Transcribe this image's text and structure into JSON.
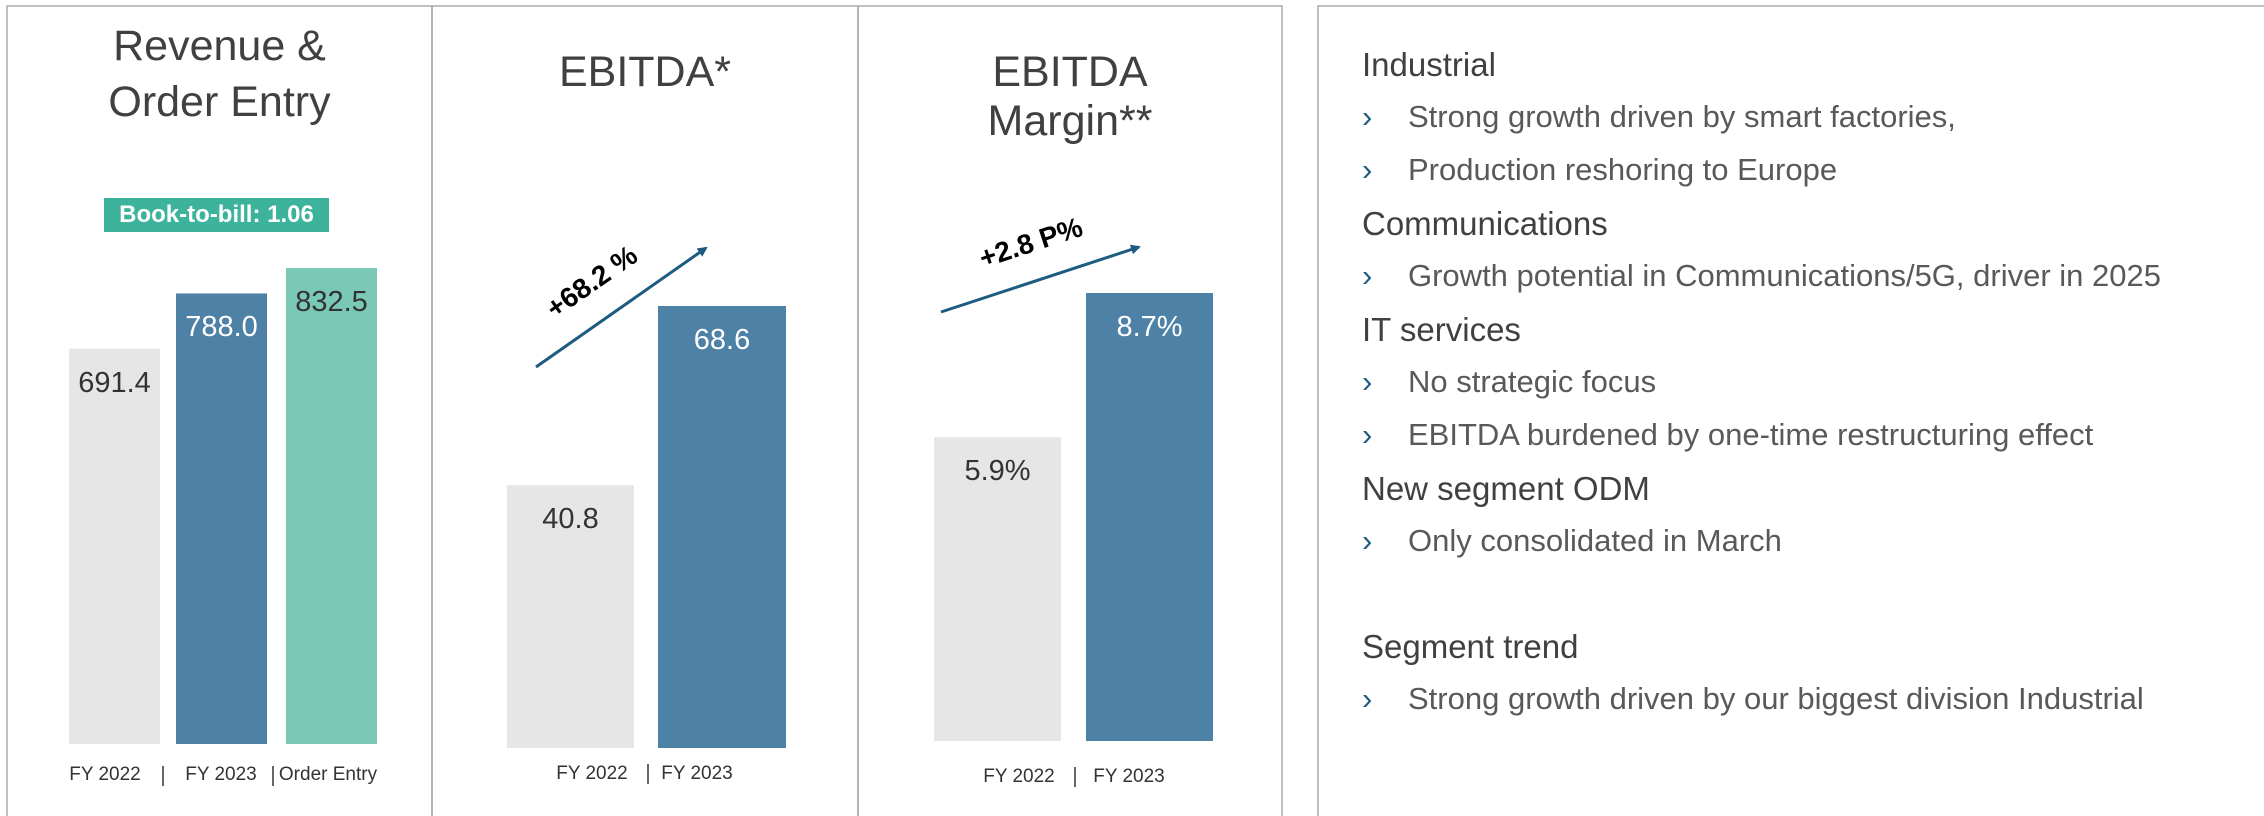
{
  "chart_data": [
    {
      "type": "bar",
      "title": "Revenue & Order Entry",
      "categories": [
        "FY 2022",
        "FY 2023",
        "Order Entry"
      ],
      "values": [
        691.4,
        788.0,
        832.5
      ],
      "value_labels": [
        "691.4",
        "788.0",
        "832.5"
      ],
      "colors": [
        "#e6e6e6",
        "#4e81a6",
        "#79c9b6"
      ],
      "annotation": "Book-to-bill: 1.06"
    },
    {
      "type": "bar",
      "title": "EBITDA*",
      "categories": [
        "FY 2022",
        "FY 2023"
      ],
      "values": [
        40.8,
        68.6
      ],
      "colors": [
        "#e6e6e6",
        "#4e81a6"
      ],
      "annotation": "+68.2 %"
    },
    {
      "type": "bar",
      "title": "EBITDA Margin**",
      "categories": [
        "FY 2022",
        "FY 2023"
      ],
      "values": [
        5.9,
        8.7
      ],
      "value_labels": [
        "5.9%",
        "8.7%"
      ],
      "colors": [
        "#e6e6e6",
        "#4e81a6"
      ],
      "annotation": "+2.8 P%"
    }
  ],
  "text_panel": {
    "sections": [
      {
        "heading": "Industrial",
        "bullets": [
          "Strong growth driven by smart factories,",
          "Production reshoring to Europe"
        ]
      },
      {
        "heading": "Communications",
        "bullets": [
          "Growth potential in Communications/5G, driver in 2025"
        ]
      },
      {
        "heading": "IT services",
        "bullets": [
          "No strategic focus",
          "EBITDA burdened by one-time restructuring effect"
        ]
      },
      {
        "heading": "New segment ODM",
        "bullets": [
          "Only consolidated in March"
        ]
      },
      {
        "heading": "Segment trend",
        "bullets": [
          "Strong growth driven by our biggest division Industrial"
        ]
      }
    ]
  }
}
